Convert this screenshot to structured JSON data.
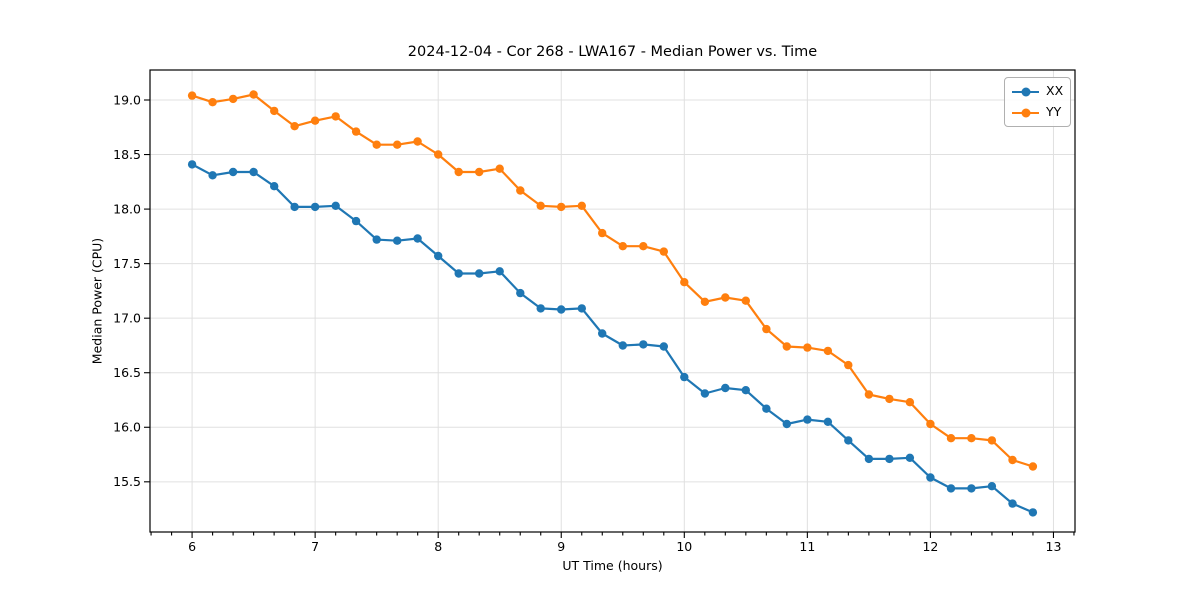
{
  "chart_data": {
    "type": "line",
    "title": "2024-12-04 - Cor 268 - LWA167 - Median Power vs. Time",
    "xlabel": "UT Time (hours)",
    "ylabel": "Median Power (CPU)",
    "x": [
      6.0,
      6.167,
      6.333,
      6.5,
      6.667,
      6.833,
      7.0,
      7.167,
      7.333,
      7.5,
      7.667,
      7.833,
      8.0,
      8.167,
      8.333,
      8.5,
      8.667,
      8.833,
      9.0,
      9.167,
      9.333,
      9.5,
      9.667,
      9.833,
      10.0,
      10.167,
      10.333,
      10.5,
      10.667,
      10.833,
      11.0,
      11.167,
      11.333,
      11.5,
      11.667,
      11.833,
      12.0,
      12.167,
      12.333,
      12.5,
      12.667,
      12.833
    ],
    "series": [
      {
        "name": "XX",
        "color": "#1f77b4",
        "values": [
          18.41,
          18.31,
          18.34,
          18.34,
          18.21,
          18.02,
          18.02,
          18.03,
          17.89,
          17.72,
          17.71,
          17.73,
          17.57,
          17.41,
          17.41,
          17.43,
          17.23,
          17.09,
          17.08,
          17.09,
          16.86,
          16.75,
          16.76,
          16.74,
          16.46,
          16.31,
          16.36,
          16.34,
          16.17,
          16.03,
          16.07,
          16.05,
          15.88,
          15.71,
          15.71,
          15.72,
          15.54,
          15.44,
          15.44,
          15.46,
          15.3,
          15.22
        ]
      },
      {
        "name": "YY",
        "color": "#ff7f0e",
        "values": [
          19.04,
          18.98,
          19.01,
          19.05,
          18.9,
          18.76,
          18.81,
          18.85,
          18.71,
          18.59,
          18.59,
          18.62,
          18.5,
          18.34,
          18.34,
          18.37,
          18.17,
          18.03,
          18.02,
          18.03,
          17.78,
          17.66,
          17.66,
          17.61,
          17.33,
          17.15,
          17.19,
          17.16,
          16.9,
          16.74,
          16.73,
          16.7,
          16.57,
          16.3,
          16.26,
          16.23,
          16.03,
          15.9,
          15.9,
          15.88,
          15.7,
          15.64
        ]
      }
    ],
    "xlim": [
      5.658,
      13.175
    ],
    "ylim": [
      15.04,
      19.275
    ],
    "xticks": [
      6,
      7,
      8,
      9,
      10,
      11,
      12,
      13
    ],
    "xtick_labels": [
      "6",
      "7",
      "8",
      "9",
      "10",
      "11",
      "12",
      "13"
    ],
    "yticks": [
      15.5,
      16.0,
      16.5,
      17.0,
      17.5,
      18.0,
      18.5,
      19.0
    ],
    "ytick_labels": [
      "15.5",
      "16.0",
      "16.5",
      "17.0",
      "17.5",
      "18.0",
      "18.5",
      "19.0"
    ],
    "x_minor_tick_step_hours": 0.16667,
    "grid": true,
    "grid_color": "#e0e0e0",
    "axis_color": "#000000",
    "background_color": "#ffffff",
    "legend": {
      "position": "upper right",
      "entries": [
        "XX",
        "YY"
      ]
    }
  }
}
